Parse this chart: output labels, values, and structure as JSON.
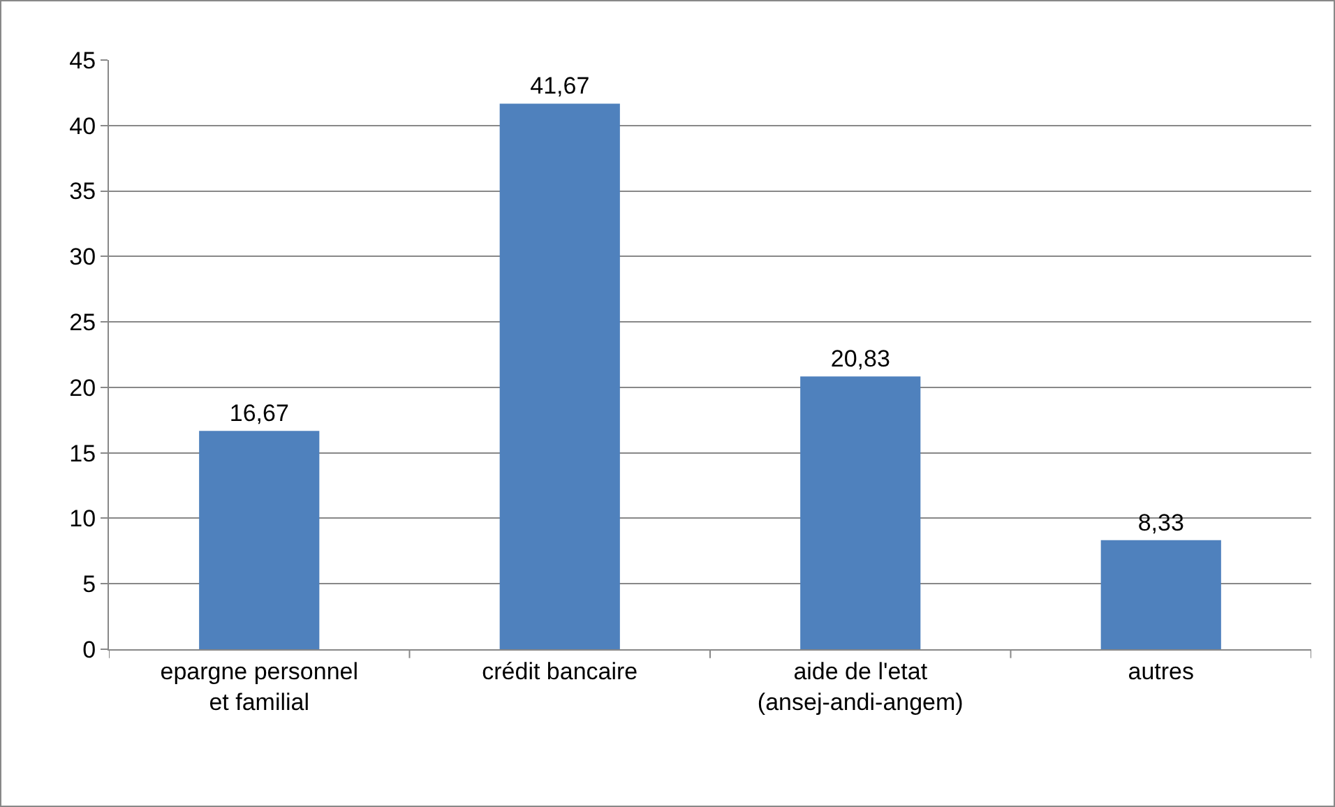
{
  "chart_data": {
    "type": "bar",
    "categories": [
      "epargne personnel et familial",
      "crédit bancaire",
      "aide de l'etat (ansej-andi-angem)",
      "autres"
    ],
    "values": [
      16.67,
      41.67,
      20.83,
      8.33
    ],
    "value_labels": [
      "16,67",
      "41,67",
      "20,83",
      "8,33"
    ],
    "color": "#4f81bd",
    "ylim": [
      0,
      45
    ],
    "yticks": [
      0,
      5,
      10,
      15,
      20,
      25,
      30,
      35,
      40,
      45
    ],
    "grid": "y"
  }
}
